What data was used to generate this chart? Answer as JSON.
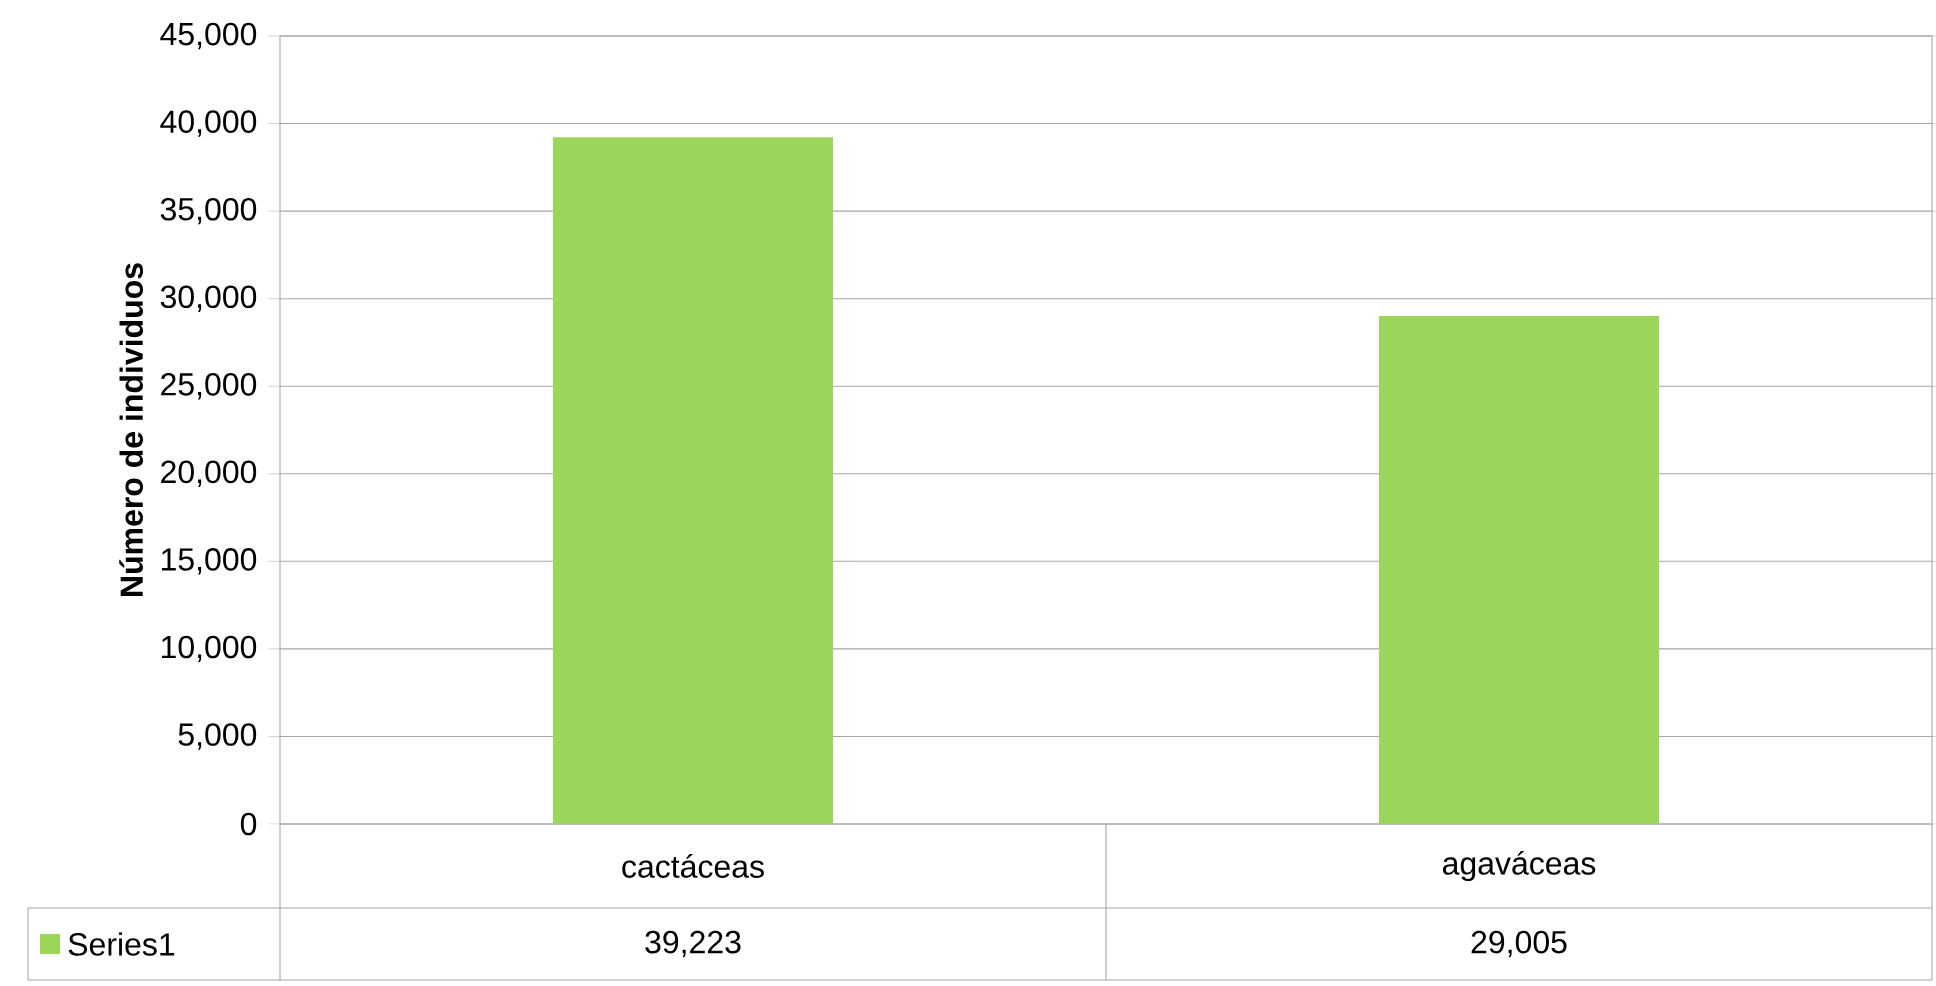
{
  "chart_data": {
    "type": "bar",
    "ylabel": "Número de individuos",
    "categories": [
      "cactáceas",
      "agaváceas"
    ],
    "series": [
      {
        "name": "Series1",
        "color": "#9bd65a",
        "values": [
          39223,
          29005
        ],
        "value_labels": [
          "39,223",
          "29,005"
        ]
      }
    ],
    "ylim": [
      0,
      45000
    ],
    "yticks": [
      0,
      {
        "value": 5000,
        "label": "5,000"
      },
      {
        "value": 10000,
        "label": "10,000"
      },
      {
        "value": 15000,
        "label": "15,000"
      },
      {
        "value": 20000,
        "label": "20,000"
      },
      {
        "value": 25000,
        "label": "25,000"
      },
      {
        "value": 30000,
        "label": "30,000"
      },
      {
        "value": 35000,
        "label": "35,000"
      },
      {
        "value": 40000,
        "label": "40,000"
      },
      {
        "value": 45000,
        "label": "45,000"
      }
    ],
    "grid": "y"
  }
}
